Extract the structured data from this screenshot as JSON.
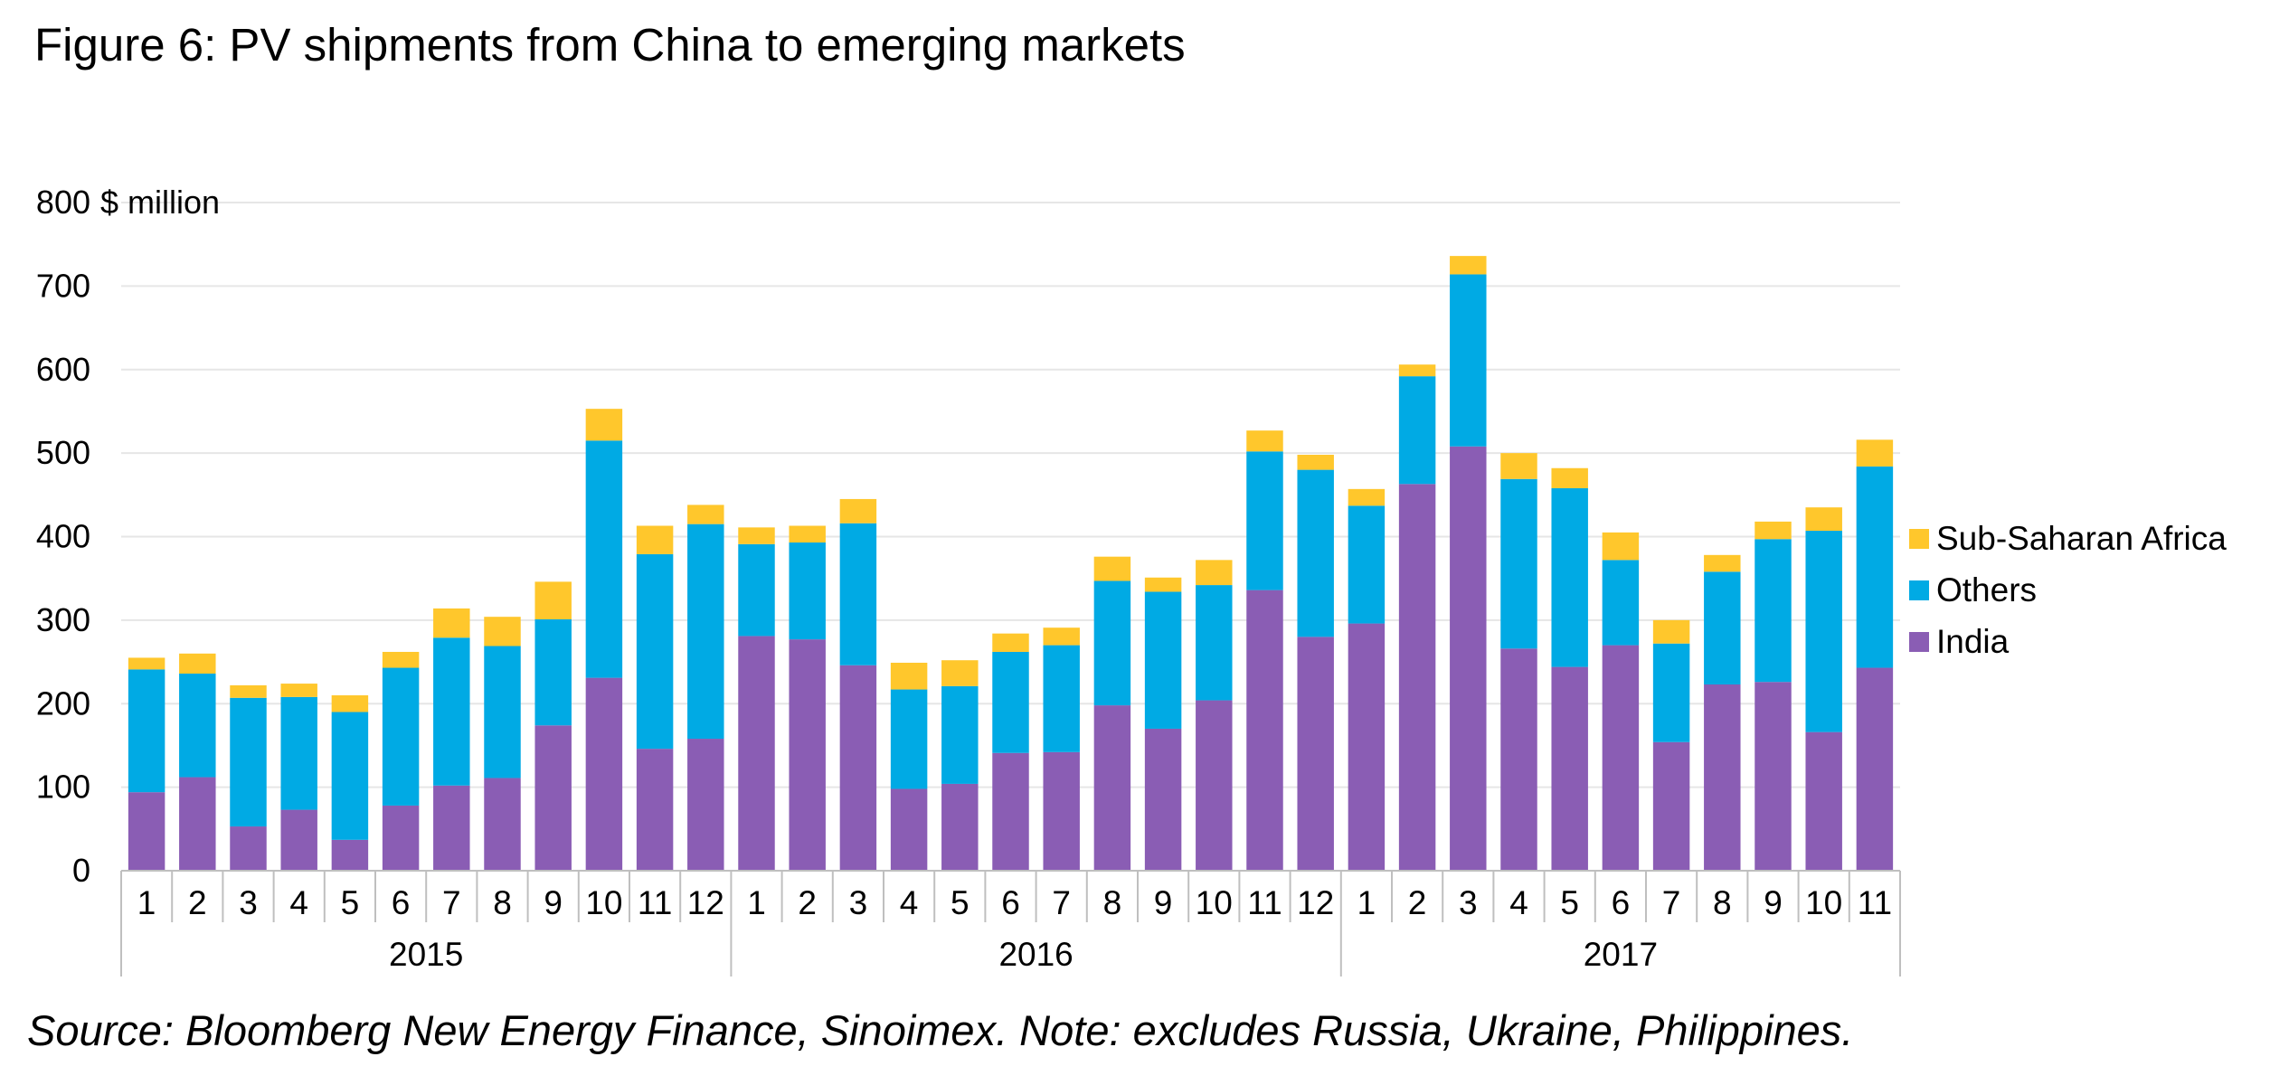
{
  "title": "Figure 6: PV shipments from China to emerging markets",
  "source": "Source: Bloomberg New Energy Finance, Sinoimex. Note: excludes Russia, Ukraine, Philippines.",
  "chart_data": {
    "type": "bar",
    "stacked": true,
    "ylabel": "$ million",
    "ylim": [
      0,
      800
    ],
    "yticks": [
      0,
      100,
      200,
      300,
      400,
      500,
      600,
      700,
      800
    ],
    "grid": true,
    "legend_position": "right",
    "categories": [
      "1",
      "2",
      "3",
      "4",
      "5",
      "6",
      "7",
      "8",
      "9",
      "10",
      "11",
      "12",
      "1",
      "2",
      "3",
      "4",
      "5",
      "6",
      "7",
      "8",
      "9",
      "10",
      "11",
      "12",
      "1",
      "2",
      "3",
      "4",
      "5",
      "6",
      "7",
      "8",
      "9",
      "10",
      "11"
    ],
    "groups": [
      {
        "label": "2015",
        "count": 12
      },
      {
        "label": "2016",
        "count": 12
      },
      {
        "label": "2017",
        "count": 11
      }
    ],
    "series": [
      {
        "name": "India",
        "color": "#8a5db4",
        "values": [
          94,
          112,
          53,
          73,
          37,
          78,
          102,
          111,
          174,
          231,
          146,
          158,
          281,
          277,
          246,
          98,
          104,
          141,
          142,
          198,
          170,
          204,
          336,
          280,
          296,
          463,
          508,
          266,
          244,
          270,
          154,
          223,
          226,
          166,
          243
        ]
      },
      {
        "name": "Others",
        "color": "#00aae4",
        "values": [
          147,
          124,
          154,
          135,
          153,
          165,
          177,
          158,
          127,
          284,
          233,
          257,
          110,
          116,
          170,
          119,
          117,
          121,
          128,
          149,
          164,
          138,
          166,
          200,
          141,
          129,
          206,
          203,
          214,
          102,
          118,
          135,
          171,
          241,
          241
        ]
      },
      {
        "name": "Sub-Saharan Africa",
        "color": "#ffc72c",
        "values": [
          14,
          24,
          15,
          16,
          20,
          19,
          35,
          35,
          45,
          38,
          34,
          23,
          20,
          20,
          29,
          32,
          31,
          22,
          21,
          29,
          17,
          30,
          25,
          18,
          20,
          14,
          22,
          31,
          24,
          33,
          28,
          20,
          21,
          28,
          32
        ]
      }
    ],
    "legend_order": [
      "Sub-Saharan Africa",
      "Others",
      "India"
    ]
  }
}
